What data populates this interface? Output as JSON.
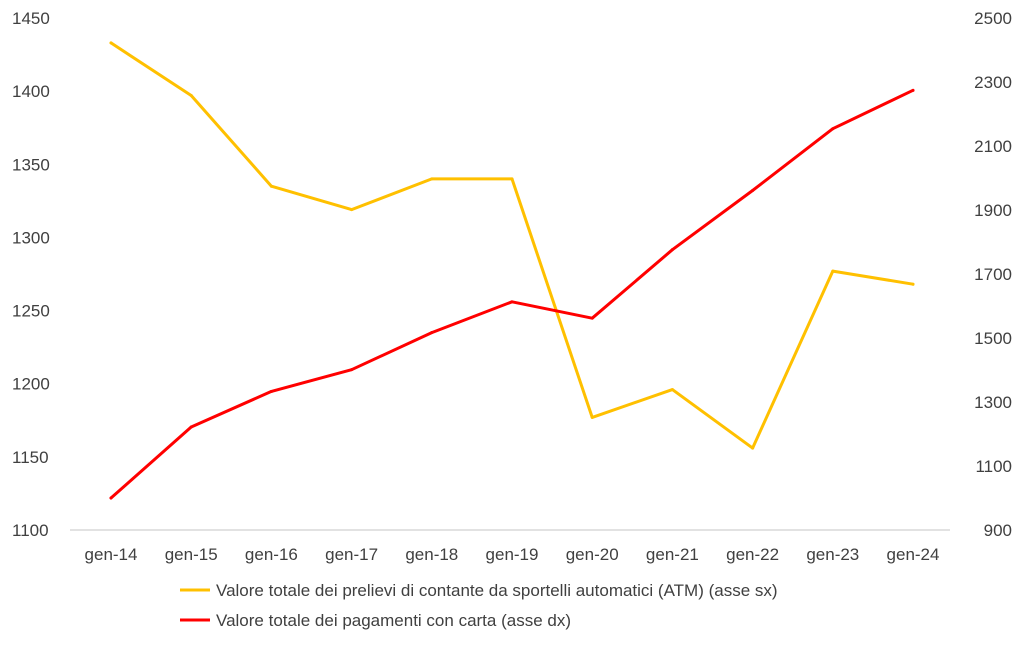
{
  "chart_data": {
    "type": "line",
    "title": "",
    "categories": [
      "gen-14",
      "gen-15",
      "gen-16",
      "gen-17",
      "gen-18",
      "gen-19",
      "gen-20",
      "gen-21",
      "gen-22",
      "gen-23",
      "gen-24"
    ],
    "y_left": {
      "min": 1100,
      "max": 1450,
      "ticks": [
        "1450",
        "1400",
        "1350",
        "1300",
        "1250",
        "1200",
        "1150",
        "1100"
      ]
    },
    "y_right": {
      "min": 900,
      "max": 2500,
      "ticks": [
        "2500",
        "2300",
        "2100",
        "1900",
        "1700",
        "1500",
        "1300",
        "1100",
        "900"
      ]
    },
    "series": [
      {
        "name": "Valore totale dei prelievi di contante da sportelli automatici (ATM) (asse sx)",
        "axis": "left",
        "color": "#FFC000",
        "values": [
          1433,
          1397,
          1335,
          1319,
          1340,
          1340,
          1177,
          1196,
          1156,
          1277,
          1268
        ]
      },
      {
        "name": "Valore totale dei pagamenti con carta (asse dx)",
        "axis": "right",
        "color": "#FF0000",
        "values": [
          1000,
          1222,
          1333,
          1401,
          1517,
          1613,
          1562,
          1776,
          1961,
          2154,
          2274
        ]
      }
    ],
    "legend_position": "bottom",
    "grid": false
  }
}
